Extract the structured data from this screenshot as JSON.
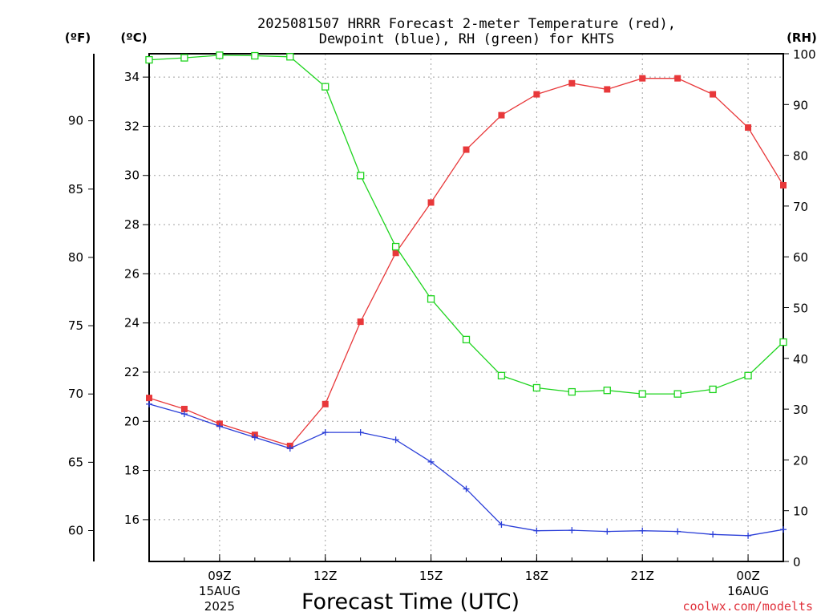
{
  "chart_data": {
    "type": "line",
    "title_lines": [
      "2025081507 HRRR Forecast 2-meter Temperature (red),",
      "Dewpoint (blue), RH (green) for KHTS"
    ],
    "xlabel": "Forecast Time (UTC)",
    "credit": "coolwx.com/modelts",
    "unit_labels": {
      "fahrenheit": "(ºF)",
      "celsius": "(ºC)",
      "rh": "(RH)"
    },
    "x": [
      "07Z",
      "08Z",
      "09Z",
      "10Z",
      "11Z",
      "12Z",
      "13Z",
      "14Z",
      "15Z",
      "16Z",
      "17Z",
      "18Z",
      "19Z",
      "20Z",
      "21Z",
      "22Z",
      "23Z",
      "00Z",
      "01Z"
    ],
    "x_ticks": [
      {
        "hour": 9,
        "labels": [
          "09Z",
          "15AUG",
          "2025"
        ]
      },
      {
        "hour": 12,
        "labels": [
          "12Z"
        ]
      },
      {
        "hour": 15,
        "labels": [
          "15Z"
        ]
      },
      {
        "hour": 18,
        "labels": [
          "18Z"
        ]
      },
      {
        "hour": 21,
        "labels": [
          "21Z"
        ]
      },
      {
        "hour": 24,
        "labels": [
          "00Z",
          "16AUG"
        ]
      }
    ],
    "celsius_ticks": [
      16,
      18,
      20,
      22,
      24,
      26,
      28,
      30,
      32,
      34
    ],
    "fahrenheit_ticks": [
      60,
      65,
      70,
      75,
      80,
      85,
      90
    ],
    "rh_ticks": [
      0,
      10,
      20,
      30,
      40,
      50,
      60,
      70,
      80,
      90,
      100
    ],
    "ylim_celsius": [
      14.3,
      34.95
    ],
    "ylim_rh": [
      0,
      100
    ],
    "series": [
      {
        "key": "temperature",
        "axis": "celsius",
        "color": "#e8383a",
        "marker": "filled-square",
        "values": [
          20.95,
          20.5,
          19.9,
          19.45,
          19.0,
          20.7,
          24.05,
          26.85,
          28.9,
          31.05,
          32.45,
          33.3,
          33.75,
          33.5,
          33.95,
          33.95,
          33.3,
          31.95,
          29.6
        ]
      },
      {
        "key": "dewpoint",
        "axis": "celsius",
        "color": "#2a3ed8",
        "marker": "plus",
        "values": [
          20.7,
          20.3,
          19.8,
          19.35,
          18.9,
          19.55,
          19.55,
          19.25,
          18.35,
          17.25,
          15.8,
          15.55,
          15.57,
          15.52,
          15.55,
          15.52,
          15.4,
          15.35,
          15.6
        ]
      },
      {
        "key": "rh",
        "axis": "rh",
        "color": "#1ed41e",
        "marker": "open-square",
        "values": [
          98.8,
          99.2,
          99.7,
          99.6,
          99.4,
          93.5,
          76.0,
          62.0,
          51.7,
          43.7,
          36.6,
          34.2,
          33.4,
          33.7,
          33.0,
          33.0,
          33.9,
          36.6,
          43.2
        ]
      }
    ]
  }
}
